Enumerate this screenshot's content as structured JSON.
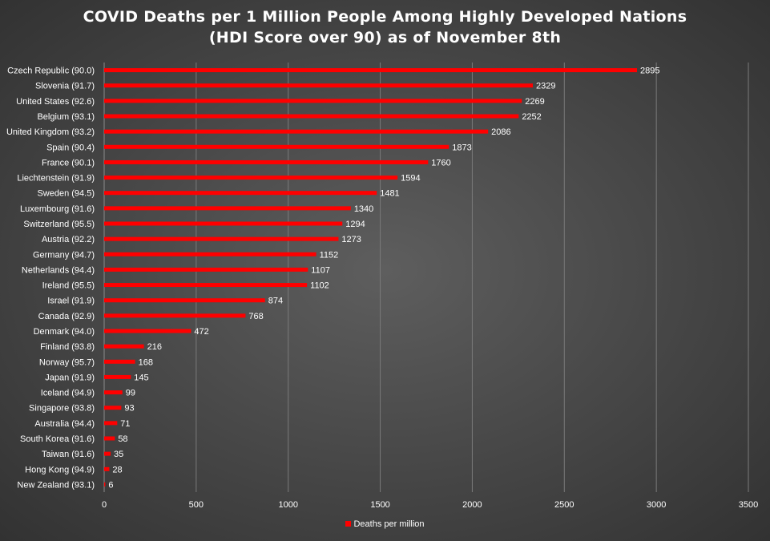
{
  "chart_data": {
    "type": "bar",
    "orientation": "horizontal",
    "title": "COVID Deaths per 1 Million People Among Highly Developed Nations (HDI Score over 90) as of November 8th",
    "categories": [
      "Czech Republic (90.0)",
      "Slovenia (91.7)",
      "United States (92.6)",
      "Belgium (93.1)",
      "United Kingdom (93.2)",
      "Spain (90.4)",
      "France (90.1)",
      "Liechtenstein (91.9)",
      "Sweden (94.5)",
      "Luxembourg (91.6)",
      "Switzerland (95.5)",
      "Austria (92.2)",
      "Germany (94.7)",
      "Netherlands (94.4)",
      "Ireland (95.5)",
      "Israel (91.9)",
      "Canada (92.9)",
      "Denmark (94.0)",
      "Finland (93.8)",
      "Norway (95.7)",
      "Japan (91.9)",
      "Iceland (94.9)",
      "Singapore (93.8)",
      "Australia (94.4)",
      "South Korea (91.6)",
      "Taiwan (91.6)",
      "Hong Kong (94.9)",
      "New Zealand (93.1)"
    ],
    "series": [
      {
        "name": "Deaths per million",
        "values": [
          2895,
          2329,
          2269,
          2252,
          2086,
          1873,
          1760,
          1594,
          1481,
          1340,
          1294,
          1273,
          1152,
          1107,
          1102,
          874,
          768,
          472,
          216,
          168,
          145,
          99,
          93,
          71,
          58,
          35,
          28,
          6
        ]
      }
    ],
    "xlim": [
      0,
      3500
    ],
    "x_ticks": [
      0,
      500,
      1000,
      1500,
      2000,
      2500,
      3000,
      3500
    ],
    "grid": "vertical",
    "legend_position": "bottom",
    "data_labels": true,
    "bar_color": "#ff0000"
  }
}
